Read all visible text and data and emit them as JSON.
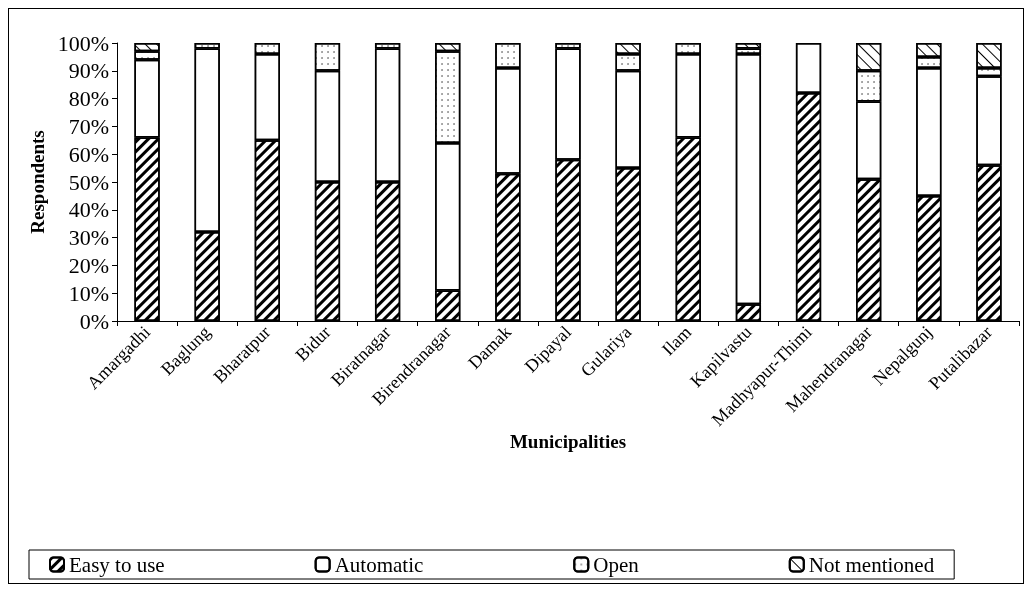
{
  "chart_data": {
    "type": "bar",
    "stacked": true,
    "xlabel": "Municipalities",
    "ylabel": "Respondents",
    "categories": [
      "Amargadhi",
      "Baglung",
      "Bharatpur",
      "Bidur",
      "Biratnagar",
      "Birendranagar",
      "Damak",
      "Dipayal",
      "Gulariya",
      "Ilam",
      "Kapilvastu",
      "Madhyapur-Thimi",
      "Mahendranagar",
      "Nepalgunj",
      "Putalibazar"
    ],
    "series": [
      {
        "name": "Easy to use",
        "color": "#ffffff",
        "values": [
          66,
          32,
          65,
          50,
          50,
          11,
          53,
          58,
          55,
          66,
          6,
          82,
          51,
          45,
          56
        ]
      },
      {
        "name": "Automatic",
        "color": "#ffffff",
        "values": [
          28,
          66,
          31,
          40,
          48,
          53,
          38,
          40,
          35,
          30,
          90,
          18,
          28,
          46,
          32
        ]
      },
      {
        "name": "Open",
        "color": "#ffffff",
        "values": [
          3,
          2,
          4,
          10,
          2,
          33,
          9,
          2,
          6,
          4,
          2,
          0,
          11,
          4,
          3
        ]
      },
      {
        "name": "Not mentioned",
        "color": "#ffffff",
        "values": [
          3,
          0,
          0,
          0,
          0,
          3,
          0,
          0,
          4,
          0,
          2,
          0,
          10,
          5,
          9
        ]
      }
    ],
    "ylim": [
      0,
      100
    ],
    "yticks": [
      {
        "value": 0,
        "label": "0%"
      },
      {
        "value": 10,
        "label": "10%"
      },
      {
        "value": 20,
        "label": "20%"
      },
      {
        "value": 30,
        "label": "30%"
      },
      {
        "value": 40,
        "label": "40%"
      },
      {
        "value": 50,
        "label": "50%"
      },
      {
        "value": 60,
        "label": "60%"
      },
      {
        "value": 70,
        "label": "70%"
      },
      {
        "value": 80,
        "label": "80%"
      },
      {
        "value": 90,
        "label": "90%"
      },
      {
        "value": 100,
        "label": "100%"
      }
    ],
    "grid": false,
    "legend": "bottom"
  }
}
